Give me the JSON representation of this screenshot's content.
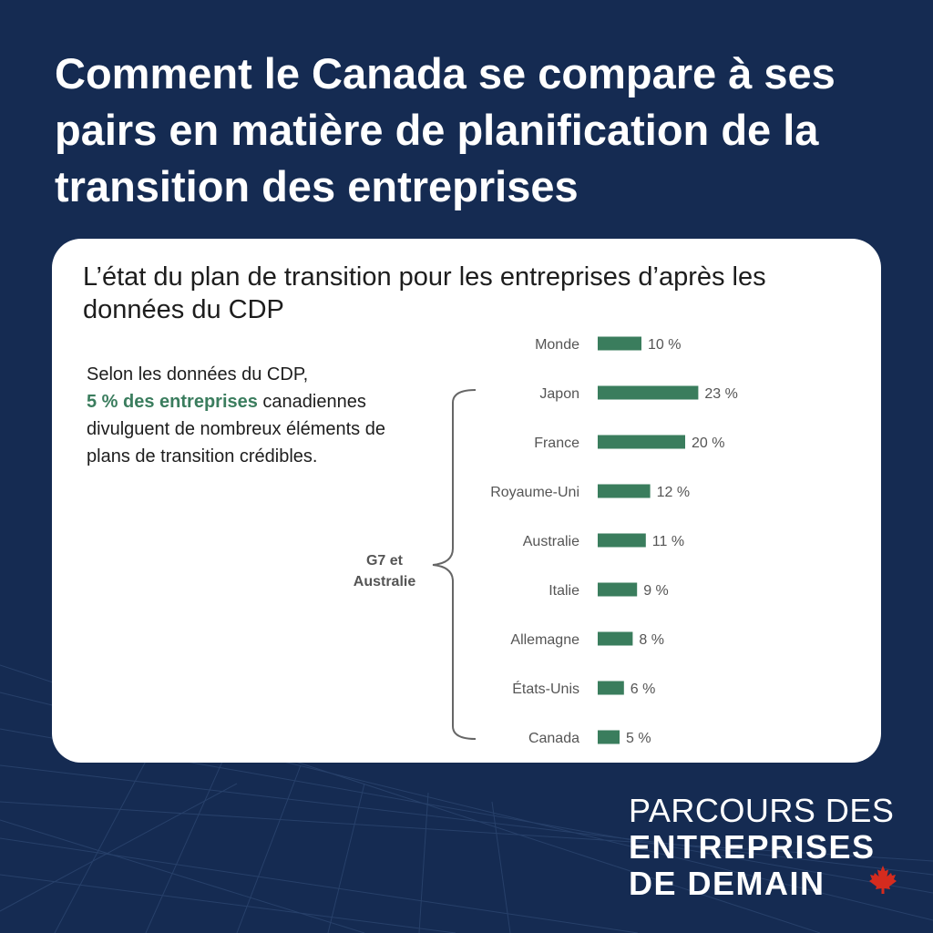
{
  "headline": "Comment le Canada se compare à ses pairs en matière de planification de la transition des entreprises",
  "card": {
    "title": "L’état du plan de transition pour les entreprises d’après les données du CDP",
    "note_before": "Selon les données du CDP,",
    "note_highlight": "5 % des entreprises",
    "note_after": " canadiennes divulguent de nombreux éléments de plans de transition crédibles.",
    "group_label_line1": "G7 et",
    "group_label_line2": "Australie"
  },
  "logo": {
    "line1": "PARCOURS DES",
    "line2": "ENTREPRISES",
    "line3": "DE DEMAIN",
    "leaf_icon": "maple-leaf-icon"
  },
  "colors": {
    "background": "#152b52",
    "bar": "#3a7d5d",
    "highlight": "#3b7d5e",
    "leaf": "#d52b1e"
  },
  "chart_data": {
    "type": "bar",
    "orientation": "horizontal",
    "categories": [
      "Monde",
      "Japon",
      "France",
      "Royaume-Uni",
      "Australie",
      "Italie",
      "Allemagne",
      "États-Unis",
      "Canada"
    ],
    "values": [
      10,
      23,
      20,
      12,
      11,
      9,
      8,
      6,
      5
    ],
    "value_labels": [
      "10 %",
      "23 %",
      "20 %",
      "12 %",
      "11 %",
      "9 %",
      "8 %",
      "6 %",
      "5 %"
    ],
    "unit": "%",
    "grid": false,
    "legend": "none"
  }
}
